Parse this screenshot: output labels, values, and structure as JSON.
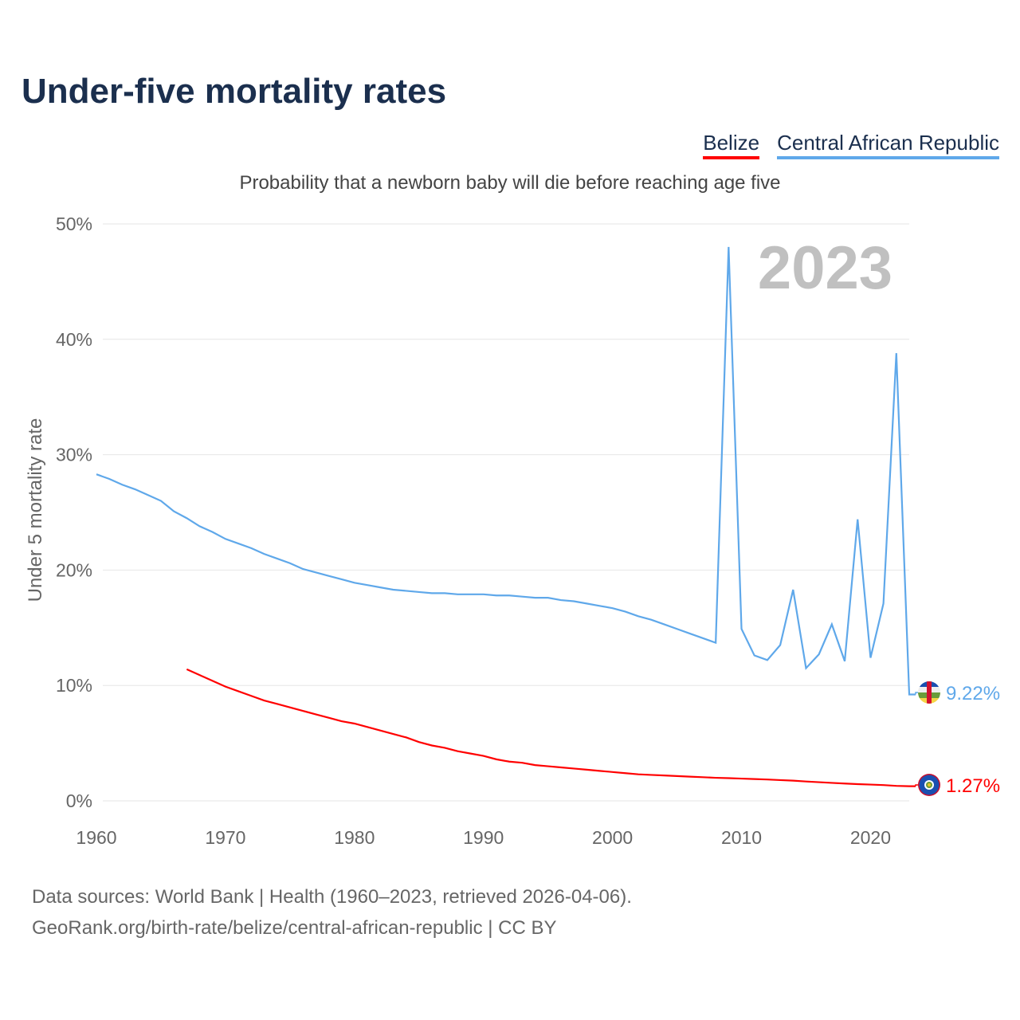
{
  "title": "Under-five mortality rates",
  "subtitle": "Probability that a newborn baby will die before reaching age five",
  "footer": {
    "line1": "Data sources: World Bank | Health (1960–2023, retrieved 2026-04-06).",
    "line2": "GeoRank.org/birth-rate/belize/central-african-republic | CC BY"
  },
  "chart_data": {
    "type": "line",
    "title": "Under-five mortality rates",
    "ylabel": "Under 5 mortality rate",
    "xlabel": "",
    "year_watermark": "2023",
    "xlim": [
      1960,
      2023
    ],
    "ylim": [
      0,
      50
    ],
    "x_ticks": [
      "1960",
      "1970",
      "1980",
      "1990",
      "2000",
      "2010",
      "2020"
    ],
    "y_ticks": [
      "0%",
      "10%",
      "20%",
      "30%",
      "40%",
      "50%"
    ],
    "grid": true,
    "legend_position": "top-right",
    "series": [
      {
        "name": "Belize",
        "color": "#ff0000",
        "start_year": 1967,
        "end_label": "1.27%",
        "flag": "belize-flag",
        "values": [
          11.4,
          10.9,
          10.4,
          9.9,
          9.5,
          9.1,
          8.7,
          8.4,
          8.1,
          7.8,
          7.5,
          7.2,
          6.9,
          6.7,
          6.4,
          6.1,
          5.8,
          5.5,
          5.1,
          4.8,
          4.6,
          4.3,
          4.1,
          3.9,
          3.6,
          3.4,
          3.3,
          3.1,
          3.0,
          2.9,
          2.8,
          2.7,
          2.6,
          2.5,
          2.4,
          2.3,
          2.25,
          2.2,
          2.15,
          2.1,
          2.05,
          2.0,
          1.97,
          1.93,
          1.89,
          1.85,
          1.8,
          1.75,
          1.68,
          1.62,
          1.56,
          1.5,
          1.45,
          1.41,
          1.37,
          1.3,
          1.27
        ]
      },
      {
        "name": "Central African Republic",
        "color": "#5fa8ea",
        "start_year": 1960,
        "end_label": "9.22%",
        "flag": "car-flag",
        "values": [
          28.3,
          27.9,
          27.4,
          27.0,
          26.5,
          26.0,
          25.1,
          24.5,
          23.8,
          23.3,
          22.7,
          22.3,
          21.9,
          21.4,
          21.0,
          20.6,
          20.1,
          19.8,
          19.5,
          19.2,
          18.9,
          18.7,
          18.5,
          18.3,
          18.2,
          18.1,
          18.0,
          18.0,
          17.9,
          17.9,
          17.9,
          17.8,
          17.8,
          17.7,
          17.6,
          17.6,
          17.4,
          17.3,
          17.1,
          16.9,
          16.7,
          16.4,
          16.0,
          15.7,
          15.3,
          14.9,
          14.5,
          14.1,
          13.7,
          48.0,
          14.9,
          12.6,
          12.2,
          13.5,
          18.3,
          11.5,
          12.7,
          15.3,
          12.1,
          24.4,
          12.4,
          17.1,
          38.8,
          9.22
        ]
      }
    ]
  }
}
